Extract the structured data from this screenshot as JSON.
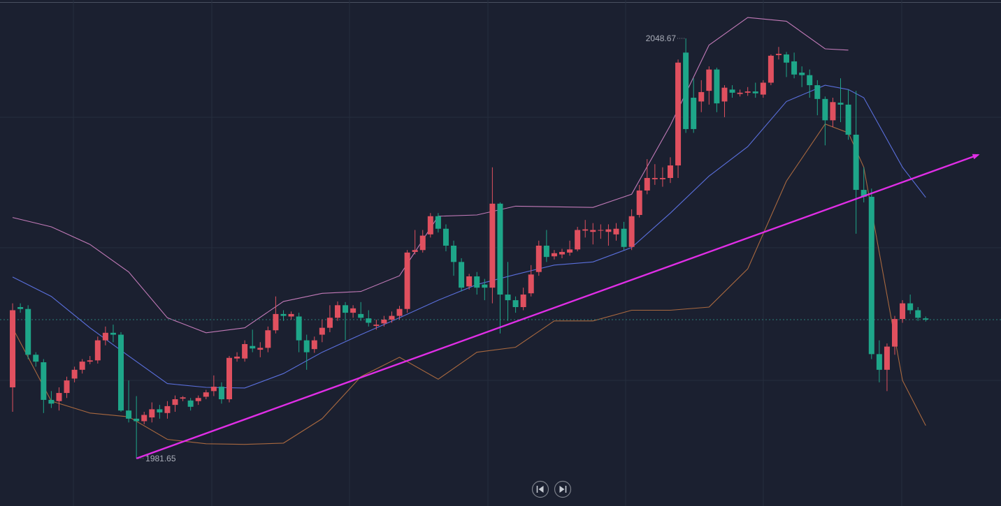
{
  "chart_data": {
    "type": "candlestick",
    "up_color": "#e0505f",
    "down_color": "#1ea689",
    "xlim": [
      -1.63,
      127.73
    ],
    "ylim": [
      1974.07,
      2054.79
    ],
    "open": [
      1993.0,
      2005.8,
      2005.5,
      1998.2,
      1997.0,
      1991.0,
      1990.8,
      1992.1,
      1994.4,
      1995.8,
      1997.1,
      1997.3,
      2000.5,
      2001.7,
      2001.4,
      1989.3,
      1988.0,
      1987.6,
      1988.2,
      1989.5,
      1988.9,
      1990.2,
      1991.2,
      1990.9,
      1990.8,
      1991.5,
      1992.4,
      1993.1,
      1991.1,
      1997.6,
      1997.6,
      1999.6,
      1999.0,
      1999.3,
      2002.1,
      2004.7,
      2004.3,
      2004.3,
      2000.5,
      1999.1,
      2001.4,
      2002.5,
      2004.1,
      2006.1,
      2004.9,
      2004.7,
      2004.0,
      2002.8,
      2003.2,
      2003.8,
      2004.4,
      2005.5,
      2014.6,
      2014.9,
      2017.4,
      2020.3,
      2018.3,
      2015.6,
      2013.0,
      2009.1,
      2010.7,
      2009.4,
      2008.9,
      2022.3,
      2007.8,
      2006.9,
      2005.8,
      2008.0,
      2011.4,
      2015.6,
      2013.9,
      2014.2,
      2014.5,
      2015.0,
      2018.0,
      2017.8,
      2018.0,
      2017.8,
      2017.4,
      2018.3,
      2015.4,
      2020.5,
      2024.4,
      2026.2,
      2026.2,
      2026.4,
      2028.4,
      2046.4,
      2039.2,
      2038.6,
      2040.3,
      2043.7,
      2038.6,
      2040.5,
      2039.8,
      2040.0,
      2040.2,
      2039.7,
      2041.6,
      2046.0,
      2046.1,
      2045.0,
      2043.2,
      2042.8,
      2041.2,
      2039.0,
      2035.6,
      2038.4,
      2038.1,
      2033.3,
      2024.5,
      2023.4,
      1998.3,
      1995.8,
      1999.5,
      2003.9,
      2006.4,
      2005.3,
      2004.0
    ],
    "high": [
      2006.4,
      2006.4,
      2006.1,
      1998.6,
      1997.5,
      1992.4,
      1993.0,
      1994.7,
      1996.3,
      1997.5,
      1998.0,
      2001.1,
      2002.7,
      2003.0,
      2001.8,
      1994.1,
      1991.6,
      1989.1,
      1990.6,
      1990.2,
      1990.8,
      1991.7,
      1991.6,
      1991.3,
      1991.7,
      1992.6,
      1994.9,
      1993.8,
      1998.0,
      1998.6,
      2000.5,
      2002.2,
      2000.2,
      2002.7,
      2007.5,
      2005.3,
      2005.1,
      2004.9,
      2001.4,
      2001.1,
      2003.8,
      2006.1,
      2006.7,
      2006.6,
      2006.1,
      2006.6,
      2005.3,
      2003.8,
      2004.4,
      2005.1,
      2006.0,
      2014.9,
      2018.1,
      2018.1,
      2020.8,
      2020.8,
      2019.0,
      2016.4,
      2013.6,
      2011.1,
      2011.4,
      2010.3,
      2028.1,
      2022.5,
      2013.0,
      2007.5,
      2008.9,
      2012.5,
      2016.4,
      2018.1,
      2014.9,
      2015.1,
      2016.4,
      2018.6,
      2019.7,
      2019.2,
      2019.0,
      2019.0,
      2019.2,
      2019.4,
      2021.4,
      2025.3,
      2029.4,
      2028.6,
      2028.1,
      2029.7,
      2045.3,
      2048.67,
      2042.3,
      2042.0,
      2044.2,
      2044.0,
      2041.2,
      2041.2,
      2040.5,
      2040.9,
      2041.6,
      2042.0,
      2046.1,
      2047.3,
      2046.5,
      2046.4,
      2044.2,
      2043.7,
      2042.0,
      2039.4,
      2039.2,
      2042.3,
      2040.5,
      2040.3,
      2028.1,
      2024.7,
      2000.5,
      2000.0,
      2004.4,
      2006.9,
      2007.8,
      2005.8,
      2004.3
    ],
    "low": [
      1989.1,
      2004.9,
      1997.5,
      1996.3,
      1988.9,
      1989.7,
      1989.3,
      1991.3,
      1993.8,
      1995.2,
      1996.7,
      1996.8,
      1999.7,
      2000.2,
      1989.1,
      1987.4,
      1981.65,
      1987.1,
      1987.4,
      1988.0,
      1988.0,
      1989.1,
      1990.8,
      1989.3,
      1990.2,
      1991.1,
      1991.6,
      1990.4,
      1990.6,
      1997.1,
      1997.1,
      1998.6,
      1997.8,
      1998.6,
      2001.6,
      2003.6,
      2003.8,
      1998.6,
      1995.8,
      1998.5,
      2000.2,
      2001.8,
      2003.6,
      2000.5,
      2004.1,
      2003.6,
      2002.7,
      2002.2,
      2002.7,
      2003.3,
      2003.8,
      2004.9,
      2014.2,
      2014.5,
      2016.9,
      2017.7,
      2014.7,
      2010.8,
      2008.3,
      2008.6,
      2007.8,
      2006.9,
      2006.4,
      2001.6,
      2003.6,
      2004.9,
      2005.3,
      2007.5,
      2010.8,
      2013.0,
      2013.4,
      2013.6,
      2014.0,
      2014.7,
      2016.9,
      2015.8,
      2016.7,
      2015.6,
      2016.4,
      2014.9,
      2014.9,
      2020.1,
      2023.8,
      2025.3,
      2025.0,
      2025.6,
      2026.4,
      2033.6,
      2033.6,
      2036.9,
      2038.1,
      2036.9,
      2036.1,
      2039.2,
      2039.4,
      2039.5,
      2039.2,
      2039.2,
      2041.2,
      2045.3,
      2042.5,
      2042.3,
      2040.9,
      2039.2,
      2036.4,
      2031.6,
      2034.5,
      2035.3,
      2032.5,
      2017.5,
      2022.5,
      1997.5,
      1993.8,
      1992.4,
      1998.2,
      2003.3,
      2004.7,
      2003.6,
      2003.5
    ],
    "close": [
      2005.3,
      2005.5,
      1998.2,
      1997.1,
      1991.0,
      1990.4,
      1992.1,
      1994.1,
      1995.8,
      1997.1,
      1997.3,
      2000.5,
      2001.7,
      2001.4,
      1989.3,
      1988.0,
      1987.6,
      1988.6,
      1989.5,
      1989.0,
      1990.0,
      1991.1,
      1991.4,
      1989.9,
      1991.3,
      1992.2,
      1993.1,
      1991.1,
      1997.7,
      1997.9,
      1999.9,
      1999.2,
      1999.3,
      2002.1,
      2004.7,
      2004.4,
      2004.7,
      2000.5,
      1998.6,
      2000.5,
      2002.5,
      2004.1,
      2006.1,
      2004.9,
      2005.6,
      2004.1,
      2003.3,
      2003.0,
      2003.8,
      2004.4,
      2005.5,
      2014.5,
      2014.9,
      2017.2,
      2020.3,
      2018.3,
      2015.6,
      2013.0,
      2008.9,
      2010.7,
      2008.9,
      2008.9,
      2022.3,
      2007.8,
      2006.9,
      2005.8,
      2007.8,
      2011.0,
      2015.6,
      2013.8,
      2014.4,
      2014.6,
      2015.0,
      2018.1,
      2018.2,
      2018.1,
      2018.1,
      2018.2,
      2018.3,
      2015.4,
      2020.3,
      2024.4,
      2026.4,
      2026.4,
      2026.4,
      2028.4,
      2044.8,
      2034.2,
      2034.2,
      2040.1,
      2043.7,
      2038.3,
      2040.8,
      2040.0,
      2040.0,
      2040.2,
      2039.9,
      2041.6,
      2045.9,
      2046.2,
      2044.8,
      2042.9,
      2042.8,
      2041.2,
      2039.0,
      2035.6,
      2038.5,
      2038.1,
      2033.3,
      2024.5,
      2023.4,
      1998.3,
      1995.8,
      1999.5,
      2003.9,
      2006.4,
      2005.3,
      2004.1,
      2003.8
    ],
    "bands": {
      "x": [
        0,
        5,
        10,
        15,
        20,
        25,
        30,
        35,
        40,
        45,
        50,
        55,
        60,
        65,
        70,
        75,
        80,
        85,
        90,
        95,
        100,
        105,
        108,
        110,
        115,
        118
      ],
      "series": [
        {
          "color": "#c27ab8",
          "values": [
            2020.1,
            2018.6,
            2015.8,
            2011.4,
            2004.1,
            2001.7,
            2002.5,
            2006.7,
            2008.0,
            2008.3,
            2010.8,
            2020.3,
            2020.5,
            2021.9,
            2021.8,
            2021.7,
            2023.8,
            2034.8,
            2047.6,
            2052.0,
            2051.4,
            2047.0,
            2046.8,
            null,
            null,
            null
          ]
        },
        {
          "color": "#5a6fdc",
          "values": [
            2010.6,
            2007.5,
            2002.5,
            1998.0,
            1993.6,
            1993.0,
            1992.9,
            1995.2,
            1998.6,
            2001.4,
            2004.1,
            2006.9,
            2009.4,
            2011.0,
            2012.5,
            2013.0,
            2015.3,
            2020.8,
            2026.7,
            2031.4,
            2038.6,
            2041.2,
            2040.5,
            2039.2,
            2028.1,
            2023.3
          ]
        },
        {
          "color": "#a8683f",
          "values": [
            2002.5,
            1990.8,
            1988.9,
            1988.3,
            1984.7,
            1984.0,
            1983.9,
            1984.1,
            1988.0,
            1994.7,
            1997.8,
            1994.3,
            1998.6,
            1999.4,
            2003.6,
            2003.6,
            2005.3,
            2005.3,
            2005.8,
            2011.9,
            2025.9,
            2035.0,
            2033.6,
            2028.1,
            1994.1,
            1986.9
          ]
        }
      ]
    },
    "trendline": {
      "x": [
        16,
        124.8
      ],
      "values": [
        1981.65,
        2030.1
      ],
      "color": "#e02ee6"
    },
    "last_price_line": true,
    "last_price_color": "#2b7f78"
  }
}
